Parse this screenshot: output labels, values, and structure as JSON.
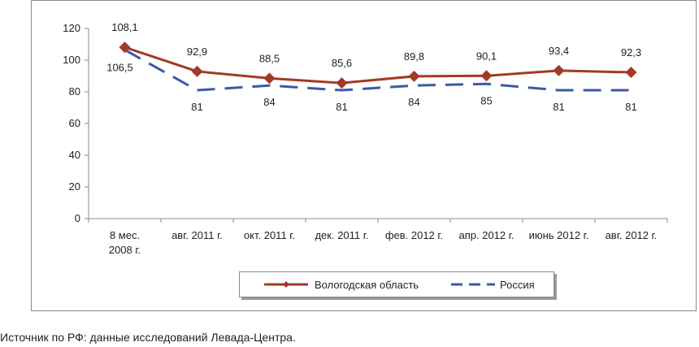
{
  "chart_data": {
    "type": "line",
    "categories": [
      "8 мес. 2008 г.",
      "авг. 2011 г.",
      "окт. 2011 г.",
      "дек. 2011 г.",
      "фев. 2012 г.",
      "апр. 2012 г.",
      "июнь 2012 г.",
      "авг. 2012 г."
    ],
    "category_lines": [
      [
        "8 мес.",
        "2008 г."
      ],
      [
        "авг. 2011 г."
      ],
      [
        "окт. 2011 г."
      ],
      [
        "дек. 2011 г."
      ],
      [
        "фев. 2012 г."
      ],
      [
        "апр. 2012 г."
      ],
      [
        "июнь 2012 г."
      ],
      [
        "авг. 2012 г."
      ]
    ],
    "series": [
      {
        "name": "Вологодская область",
        "values": [
          108.1,
          92.9,
          88.5,
          85.6,
          89.8,
          90.1,
          93.4,
          92.3
        ],
        "labels": [
          "108,1",
          "92,9",
          "88,5",
          "85,6",
          "89,8",
          "90,1",
          "93,4",
          "92,3"
        ],
        "color": "#a33a26",
        "style": "solid",
        "marker": "diamond"
      },
      {
        "name": "Россия",
        "values": [
          106.5,
          81,
          84,
          81,
          84,
          85,
          81,
          81
        ],
        "labels": [
          "106,5",
          "81",
          "84",
          "81",
          "84",
          "85",
          "81",
          "81"
        ],
        "color": "#3a5aa8",
        "style": "dashed",
        "marker": "none"
      }
    ],
    "ylim": [
      0,
      120
    ],
    "yticks": [
      0,
      20,
      40,
      60,
      80,
      100,
      120
    ],
    "grid": false,
    "legend_position": "bottom"
  },
  "footer": {
    "source": "Источник по РФ: данные исследований Левада-Центра."
  }
}
